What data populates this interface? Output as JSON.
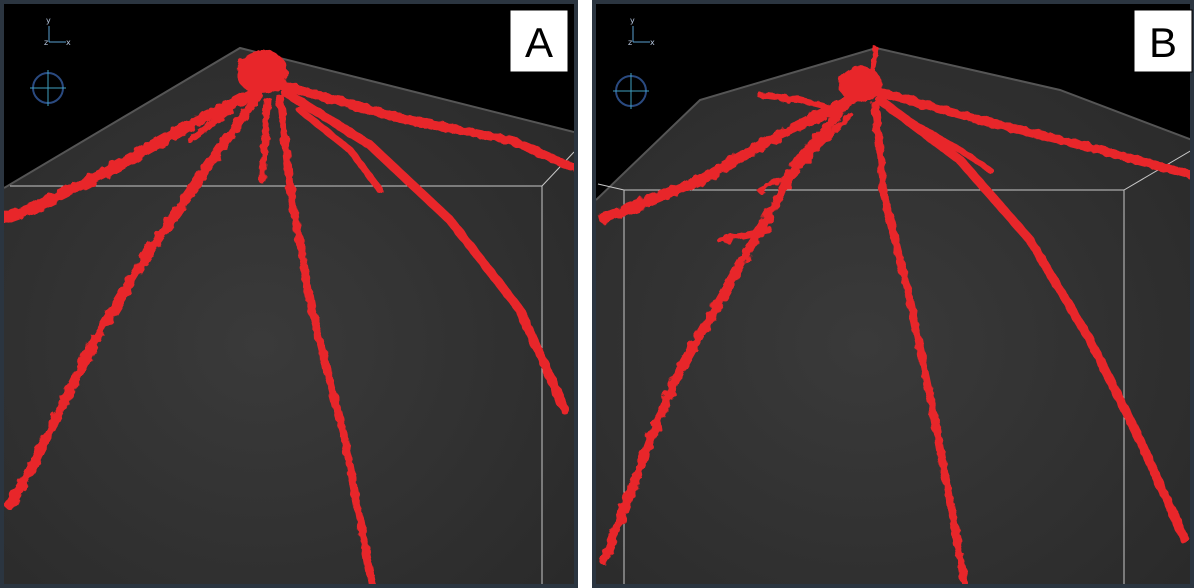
{
  "panels": [
    {
      "label": "A",
      "axes": {
        "y": "y",
        "z": "z",
        "x": "x"
      }
    },
    {
      "label": "B",
      "axes": {
        "y": "y",
        "z": "z",
        "x": "x"
      }
    }
  ]
}
